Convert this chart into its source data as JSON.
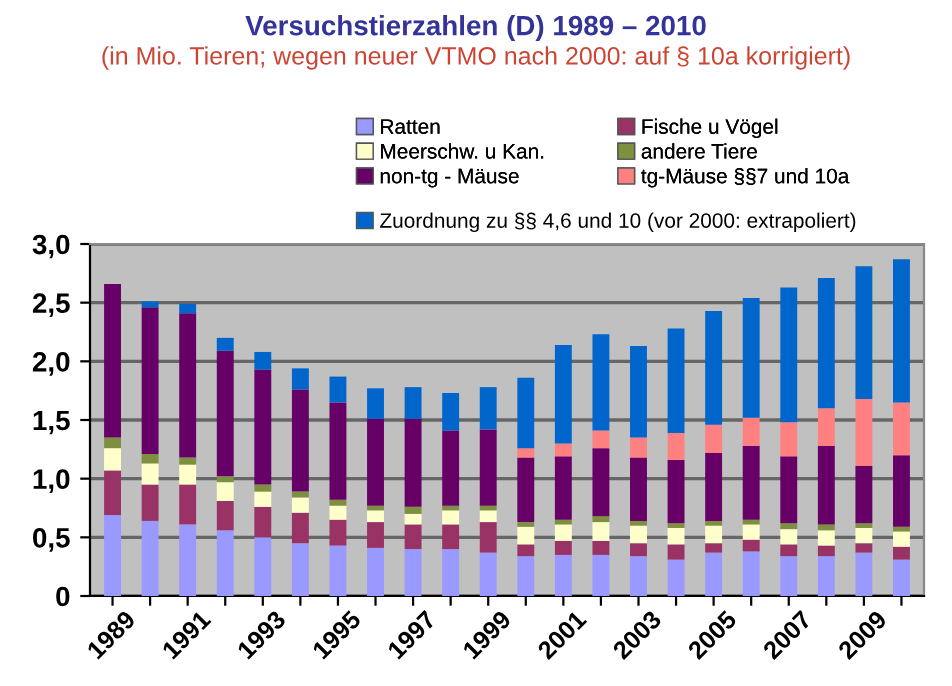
{
  "chart_data": {
    "type": "bar",
    "stacked": true,
    "title": "Versuchstierzahlen (D) 1989 – 2010",
    "subtitle": "(in Mio. Tieren; wegen neuer VTMO nach 2000: auf § 10a korrigiert)",
    "categories": [
      "1989",
      null,
      "1991",
      null,
      "1993",
      null,
      "1995",
      null,
      "1997",
      null,
      "1999",
      null,
      "2001",
      null,
      "2003",
      null,
      "2005",
      null,
      "2007",
      null,
      "2009",
      null
    ],
    "series": [
      {
        "name": "Ratten",
        "color": "#9999ff",
        "values": [
          0.69,
          0.64,
          0.61,
          0.56,
          0.5,
          0.45,
          0.43,
          0.41,
          0.4,
          0.4,
          0.37,
          0.34,
          0.35,
          0.35,
          0.34,
          0.31,
          0.37,
          0.38,
          0.34,
          0.34,
          0.37,
          0.31
        ]
      },
      {
        "name": "Fische u Vögel",
        "color": "#993366",
        "values": [
          0.38,
          0.31,
          0.34,
          0.25,
          0.26,
          0.26,
          0.22,
          0.22,
          0.21,
          0.21,
          0.26,
          0.1,
          0.12,
          0.12,
          0.11,
          0.13,
          0.08,
          0.1,
          0.1,
          0.09,
          0.08,
          0.11
        ]
      },
      {
        "name": "Meerschw. u Kan.",
        "color": "#ffffcc",
        "values": [
          0.19,
          0.18,
          0.17,
          0.16,
          0.13,
          0.13,
          0.12,
          0.1,
          0.09,
          0.12,
          0.1,
          0.15,
          0.14,
          0.16,
          0.15,
          0.14,
          0.15,
          0.13,
          0.13,
          0.13,
          0.13,
          0.13
        ]
      },
      {
        "name": "andere Tiere",
        "color": "#7f8f40",
        "values": [
          0.09,
          0.08,
          0.06,
          0.05,
          0.06,
          0.05,
          0.05,
          0.04,
          0.06,
          0.04,
          0.04,
          0.04,
          0.04,
          0.05,
          0.04,
          0.04,
          0.04,
          0.04,
          0.05,
          0.05,
          0.04,
          0.04
        ]
      },
      {
        "name": "non-tg - Mäuse",
        "color": "#660066",
        "values": [
          1.31,
          1.25,
          1.23,
          1.07,
          0.98,
          0.87,
          0.83,
          0.74,
          0.75,
          0.64,
          0.65,
          0.55,
          0.54,
          0.58,
          0.54,
          0.54,
          0.58,
          0.63,
          0.57,
          0.67,
          0.49,
          0.61
        ]
      },
      {
        "name": "tg-Mäuse §§7 und 10a",
        "color": "#ff8080",
        "values": [
          0,
          0,
          0,
          0,
          0,
          0,
          0,
          0,
          0,
          0,
          0,
          0.08,
          0.11,
          0.15,
          0.17,
          0.23,
          0.24,
          0.24,
          0.29,
          0.32,
          0.57,
          0.45
        ]
      },
      {
        "name": "Zuordnung zu §§ 4,6 und 10 (vor 2000: extrapoliert)",
        "color": "#0066cc",
        "values": [
          0,
          0.05,
          0.08,
          0.11,
          0.15,
          0.18,
          0.22,
          0.26,
          0.27,
          0.32,
          0.36,
          0.6,
          0.84,
          0.82,
          0.78,
          0.89,
          0.97,
          1.02,
          1.15,
          1.11,
          1.13,
          1.22
        ]
      }
    ],
    "ylim": [
      0,
      3.0
    ],
    "yticks": [
      0,
      {
        "value": 0.5,
        "label": "0,5"
      },
      {
        "value": 1.0,
        "label": "1,0"
      },
      {
        "value": 1.5,
        "label": "1,5"
      },
      {
        "value": 2.0,
        "label": "2,0"
      },
      {
        "value": 2.5,
        "label": "2,5"
      },
      {
        "value": 3.0,
        "label": "3,0"
      }
    ],
    "grid": "y",
    "legend": "top"
  }
}
